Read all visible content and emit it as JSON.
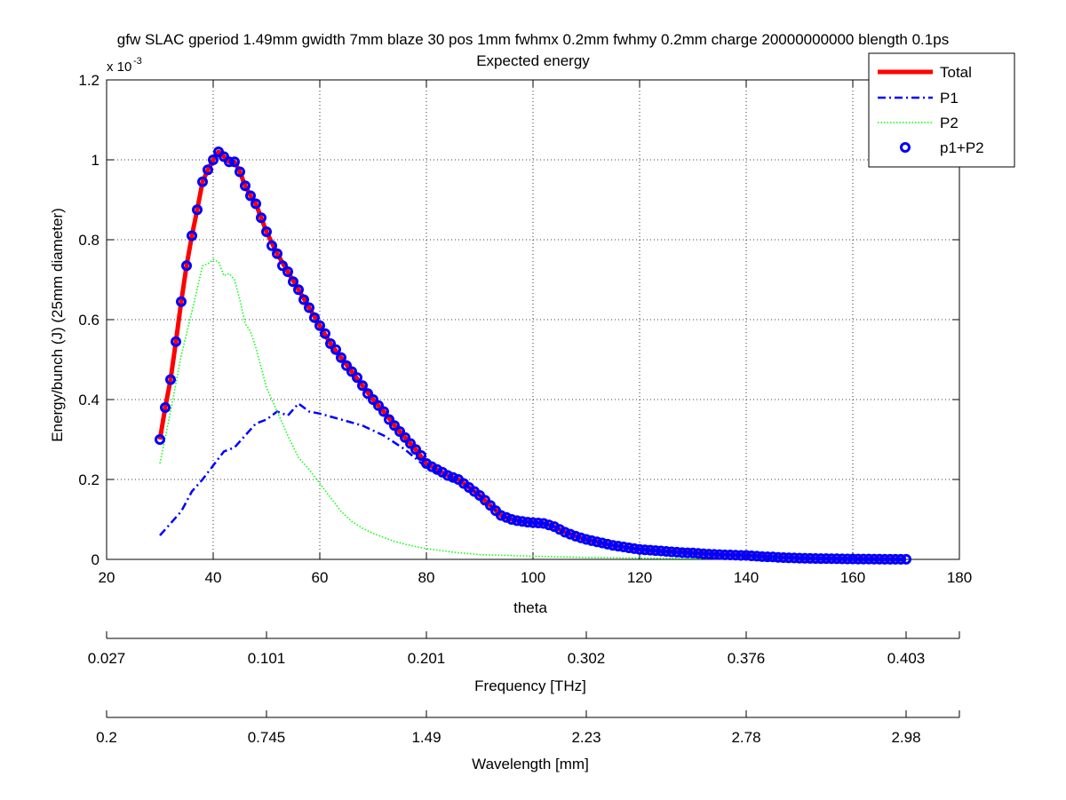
{
  "chart_data": {
    "type": "line",
    "title_line1": "gfw SLAC gperiod 1.49mm gwidth 7mm blaze 30 pos 1mm fwhmx 0.2mm fwhmy 0.2mm charge 20000000000 blength 0.1ps",
    "title_line2": "Expected energy",
    "xlabel": "theta",
    "ylabel": "Energy/bunch (J) (25mm diameter)",
    "y_exponent_base": "x 10",
    "y_exponent_power": "-3",
    "xlim": [
      20,
      180
    ],
    "ylim": [
      0,
      0.0012
    ],
    "x_ticks": [
      20,
      40,
      60,
      80,
      100,
      120,
      140,
      160,
      180
    ],
    "y_ticks": [
      0,
      0.0002,
      0.0004,
      0.0006,
      0.0008,
      0.001,
      0.0012
    ],
    "y_tick_labels": [
      "0",
      "0.2",
      "0.4",
      "0.6",
      "0.8",
      "1",
      "1.2"
    ],
    "grid": true,
    "legend_position": "top-right",
    "series": [
      {
        "name": "Total",
        "style": "solid",
        "color": "#ff0000",
        "x": [
          30,
          31,
          32,
          33,
          34,
          35,
          36,
          37,
          38,
          39,
          40,
          41,
          42,
          43,
          44,
          45,
          46,
          47,
          48,
          49,
          50,
          52,
          54,
          56,
          58,
          60,
          62,
          64,
          66,
          68,
          70,
          72,
          74,
          76,
          78,
          80,
          82,
          84,
          86,
          88,
          90,
          92,
          94,
          96,
          98,
          100,
          102,
          104,
          106,
          108,
          110,
          115,
          120,
          125,
          130,
          135,
          140,
          145,
          150,
          155,
          160,
          165,
          170
        ],
        "y": [
          0.0003,
          0.00038,
          0.00045,
          0.000545,
          0.000645,
          0.000735,
          0.00081,
          0.000875,
          0.000945,
          0.000975,
          0.001,
          0.00102,
          0.001008,
          0.000995,
          0.000995,
          0.00097,
          0.000935,
          0.00091,
          0.00089,
          0.000855,
          0.00082,
          0.000765,
          0.00072,
          0.000675,
          0.00063,
          0.000585,
          0.00054,
          0.000505,
          0.00047,
          0.000435,
          0.0004,
          0.00037,
          0.000335,
          0.000305,
          0.000275,
          0.00024,
          0.000225,
          0.00021,
          0.0002,
          0.00018,
          0.00016,
          0.000135,
          0.00011,
          0.0001,
          9.5e-05,
          9.2e-05,
          9e-05,
          8.2e-05,
          6.8e-05,
          5.8e-05,
          5e-05,
          3.5e-05,
          2.5e-05,
          2e-05,
          1.6e-05,
          1.2e-05,
          1e-05,
          6e-06,
          3e-06,
          2e-06,
          1e-06,
          5e-07,
          3e-07
        ]
      },
      {
        "name": "P1",
        "style": "dashdot",
        "color": "#0000ff",
        "x": [
          30,
          32,
          34,
          36,
          38,
          40,
          42,
          44,
          46,
          48,
          50,
          52,
          54,
          56,
          58,
          60,
          64,
          68,
          72,
          76,
          80,
          84,
          86,
          88,
          90,
          92,
          94,
          96,
          98,
          100,
          102,
          104,
          106,
          108,
          110,
          115,
          120,
          125,
          130,
          135,
          140,
          145,
          150,
          155,
          160,
          165,
          170
        ],
        "y": [
          6e-05,
          9e-05,
          0.00012,
          0.00017,
          0.0002,
          0.000235,
          0.00027,
          0.00028,
          0.00031,
          0.00034,
          0.00035,
          0.00037,
          0.00036,
          0.00039,
          0.00037,
          0.000365,
          0.00035,
          0.000335,
          0.00031,
          0.000275,
          0.00023,
          0.000205,
          0.000195,
          0.00018,
          0.00016,
          0.000135,
          0.00011,
          0.0001,
          9.5e-05,
          9.2e-05,
          9e-05,
          8.2e-05,
          6.8e-05,
          5.8e-05,
          5e-05,
          3.5e-05,
          2.5e-05,
          2e-05,
          1.6e-05,
          1.2e-05,
          1e-05,
          6e-06,
          3e-06,
          2e-06,
          1e-06,
          5e-07,
          3e-07
        ]
      },
      {
        "name": "P2",
        "style": "dotted",
        "color": "#00ff00",
        "x": [
          30,
          32,
          34,
          36,
          38,
          39,
          40,
          41,
          42,
          43,
          44,
          45,
          46,
          47,
          48,
          50,
          52,
          54,
          56,
          58,
          60,
          62,
          64,
          66,
          68,
          70,
          72,
          74,
          76,
          78,
          80,
          85,
          90,
          95,
          100,
          110,
          120,
          130,
          140,
          150,
          160,
          170
        ],
        "y": [
          0.00024,
          0.00037,
          0.00051,
          0.00062,
          0.000735,
          0.00074,
          0.00075,
          0.000745,
          0.00071,
          0.000715,
          0.0007,
          0.00065,
          0.00059,
          0.00057,
          0.00053,
          0.00043,
          0.00037,
          0.00031,
          0.000255,
          0.000225,
          0.00019,
          0.000155,
          0.00012,
          9.5e-05,
          7.8e-05,
          6.5e-05,
          5.5e-05,
          4.5e-05,
          3.8e-05,
          3.2e-05,
          2.7e-05,
          1.8e-05,
          1.2e-05,
          1e-05,
          8e-06,
          5e-06,
          3e-06,
          2e-06,
          1e-06,
          5e-07,
          3e-07,
          2e-07
        ]
      },
      {
        "name": "p1+P2",
        "style": "markers",
        "color": "#0000ff",
        "x": [
          30,
          31,
          32,
          33,
          34,
          35,
          36,
          37,
          38,
          39,
          40,
          41,
          42,
          43,
          44,
          45,
          46,
          47,
          48,
          49,
          50,
          51,
          52,
          53,
          54,
          55,
          56,
          57,
          58,
          59,
          60,
          61,
          62,
          63,
          64,
          65,
          66,
          67,
          68,
          69,
          70,
          71,
          72,
          73,
          74,
          75,
          76,
          77,
          78,
          79,
          80,
          81,
          82,
          83,
          84,
          85,
          86,
          87,
          88,
          89,
          90,
          91,
          92,
          93,
          94,
          95,
          96,
          97,
          98,
          99,
          100,
          101,
          102,
          103,
          104,
          105,
          106,
          107,
          108,
          109,
          110,
          111,
          112,
          113,
          114,
          115,
          116,
          117,
          118,
          119,
          120,
          121,
          122,
          123,
          124,
          125,
          126,
          127,
          128,
          129,
          130,
          131,
          132,
          133,
          134,
          135,
          136,
          137,
          138,
          139,
          140,
          141,
          142,
          143,
          144,
          145,
          146,
          147,
          148,
          149,
          150,
          151,
          152,
          153,
          154,
          155,
          156,
          157,
          158,
          159,
          160,
          161,
          162,
          163,
          164,
          165,
          166,
          167,
          168,
          169,
          170
        ],
        "y": [
          0.0003,
          0.00038,
          0.00045,
          0.000545,
          0.000645,
          0.000735,
          0.00081,
          0.000875,
          0.000945,
          0.000975,
          0.001,
          0.00102,
          0.001008,
          0.000995,
          0.000995,
          0.00097,
          0.000935,
          0.00091,
          0.00089,
          0.000855,
          0.00082,
          0.000785,
          0.000765,
          0.000735,
          0.00072,
          0.000695,
          0.000675,
          0.00065,
          0.00063,
          0.000605,
          0.000585,
          0.000565,
          0.00054,
          0.000525,
          0.000505,
          0.000485,
          0.00047,
          0.000455,
          0.000435,
          0.000415,
          0.0004,
          0.000385,
          0.00037,
          0.00035,
          0.000335,
          0.00032,
          0.000305,
          0.00029,
          0.000275,
          0.00026,
          0.00024,
          0.000232,
          0.000225,
          0.000218,
          0.00021,
          0.000205,
          0.0002,
          0.00019,
          0.00018,
          0.00017,
          0.00016,
          0.000148,
          0.000135,
          0.000122,
          0.00011,
          0.000105,
          0.0001,
          9.7e-05,
          9.5e-05,
          9.3e-05,
          9.2e-05,
          9.1e-05,
          9e-05,
          8.6e-05,
          8.2e-05,
          7.5e-05,
          6.8e-05,
          6.3e-05,
          5.8e-05,
          5.4e-05,
          5e-05,
          4.7e-05,
          4.4e-05,
          4.1e-05,
          3.8e-05,
          3.5e-05,
          3.3e-05,
          3.1e-05,
          2.9e-05,
          2.7e-05,
          2.5e-05,
          2.4e-05,
          2.3e-05,
          2.2e-05,
          2.1e-05,
          2e-05,
          1.9e-05,
          1.8e-05,
          1.7e-05,
          1.65e-05,
          1.6e-05,
          1.5e-05,
          1.4e-05,
          1.3e-05,
          1.25e-05,
          1.2e-05,
          1.15e-05,
          1.1e-05,
          1.05e-05,
          1e-05,
          1e-05,
          9e-06,
          8e-06,
          7e-06,
          6.5e-06,
          6e-06,
          5e-06,
          4.5e-06,
          4e-06,
          3.5e-06,
          3e-06,
          2.7e-06,
          2.5e-06,
          2.2e-06,
          2e-06,
          2e-06,
          1.8e-06,
          1.6e-06,
          1.4e-06,
          1.2e-06,
          1e-06,
          9e-07,
          8e-07,
          7e-07,
          6e-07,
          5e-07,
          4e-07,
          4e-07,
          3e-07,
          3e-07,
          3e-07
        ]
      }
    ],
    "frequency_axis": {
      "label": "Frequency [THz]",
      "ticks": [
        {
          "theta": 20,
          "label": "0.027"
        },
        {
          "theta": 50,
          "label": "0.101"
        },
        {
          "theta": 80,
          "label": "0.201"
        },
        {
          "theta": 110,
          "label": "0.302"
        },
        {
          "theta": 140,
          "label": "0.376"
        },
        {
          "theta": 170,
          "label": "0.403"
        }
      ]
    },
    "wavelength_axis": {
      "label": "Wavelength [mm]",
      "ticks": [
        {
          "theta": 20,
          "label": "0.2"
        },
        {
          "theta": 50,
          "label": "0.745"
        },
        {
          "theta": 80,
          "label": "1.49"
        },
        {
          "theta": 110,
          "label": "2.23"
        },
        {
          "theta": 140,
          "label": "2.78"
        },
        {
          "theta": 170,
          "label": "2.98"
        }
      ]
    }
  }
}
